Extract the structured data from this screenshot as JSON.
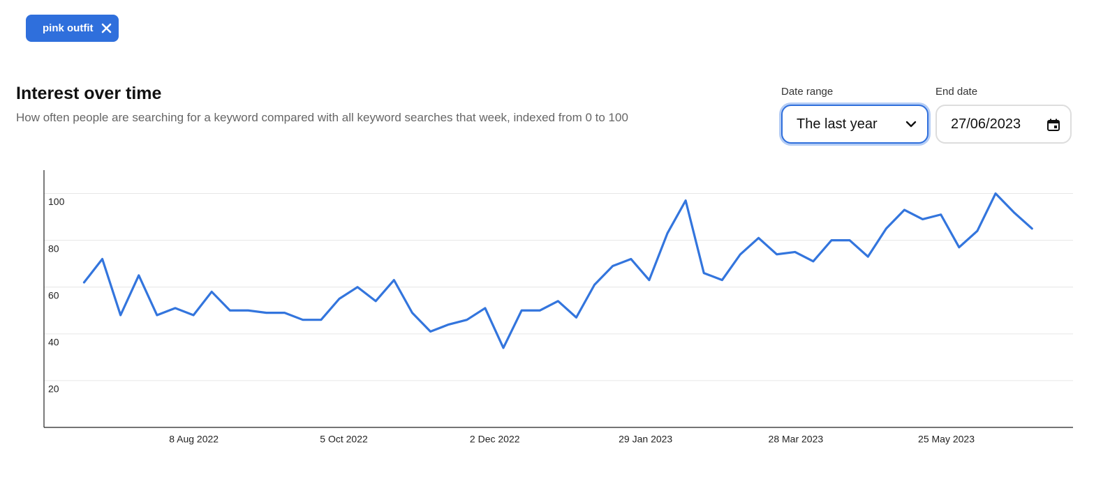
{
  "chip": {
    "label": "pink outfit"
  },
  "header": {
    "title": "Interest over time",
    "subtitle": "How often people are searching for a keyword compared with all keyword searches that week, indexed from 0 to 100"
  },
  "controls": {
    "date_range": {
      "label": "Date range",
      "value": "The last year"
    },
    "end_date": {
      "label": "End date",
      "value": "27/06/2023"
    }
  },
  "chart_data": {
    "type": "line",
    "x": [
      0,
      1,
      2,
      3,
      4,
      5,
      6,
      7,
      8,
      9,
      10,
      11,
      12,
      13,
      14,
      15,
      16,
      17,
      18,
      19,
      20,
      21,
      22,
      23,
      24,
      25,
      26,
      27,
      28,
      29,
      30,
      31,
      32,
      33,
      34,
      35,
      36,
      37,
      38,
      39,
      40,
      41,
      42,
      43,
      44,
      45,
      46,
      47,
      48,
      49,
      50,
      51,
      52
    ],
    "values": [
      62,
      72,
      48,
      65,
      48,
      51,
      48,
      58,
      50,
      50,
      49,
      49,
      46,
      46,
      55,
      60,
      54,
      63,
      49,
      41,
      44,
      46,
      51,
      34,
      50,
      50,
      54,
      47,
      61,
      69,
      72,
      63,
      83,
      97,
      66,
      63,
      74,
      81,
      74,
      75,
      71,
      80,
      80,
      73,
      85,
      93,
      89,
      91,
      77,
      84,
      100,
      92,
      85
    ],
    "color": "#3375dd",
    "xlim": [
      -2.2,
      54.25
    ],
    "xticks": [
      {
        "value": 6.02,
        "label": "8 Aug 2022"
      },
      {
        "value": 14.25,
        "label": "5 Oct 2022"
      },
      {
        "value": 22.53,
        "label": "2 Dec 2022"
      },
      {
        "value": 30.8,
        "label": "29 Jan 2023"
      },
      {
        "value": 39.04,
        "label": "28 Mar 2023"
      },
      {
        "value": 47.3,
        "label": "25 May 2023"
      }
    ],
    "ylim": [
      0,
      110
    ],
    "yticks": [
      20,
      40,
      60,
      80,
      100
    ],
    "grid": true
  }
}
